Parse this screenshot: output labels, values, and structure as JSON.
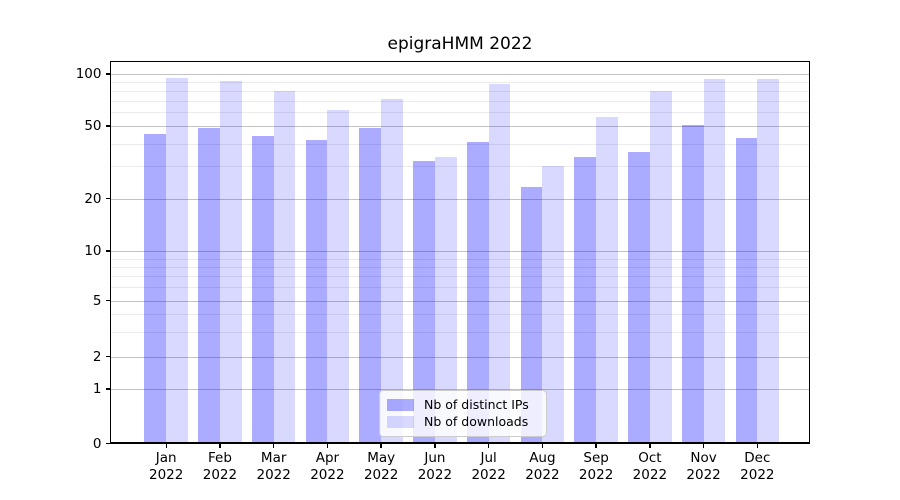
{
  "title": "epigraHMM 2022",
  "legend": {
    "items": [
      {
        "label": "Nb of distinct IPs",
        "color_hex": "#aaaaff",
        "fill": "rgba(0,0,255,0.33)"
      },
      {
        "label": "Nb of downloads",
        "color_hex": "#d9d9ff",
        "fill": "rgba(0,0,255,0.15)"
      }
    ]
  },
  "chart_data": {
    "type": "bar",
    "title": "epigraHMM 2022",
    "categories": [
      "Jan 2022",
      "Feb 2022",
      "Mar 2022",
      "Apr 2022",
      "May 2022",
      "Jun 2022",
      "Jul 2022",
      "Aug 2022",
      "Sep 2022",
      "Oct 2022",
      "Nov 2022",
      "Dec 2022"
    ],
    "series": [
      {
        "name": "Nb of distinct IPs",
        "color_hex": "#aaaaff",
        "fill": "rgba(0,0,255,0.33)",
        "values": [
          45,
          49,
          44,
          42,
          49,
          32,
          41,
          23,
          34,
          36,
          51,
          43
        ]
      },
      {
        "name": "Nb of downloads",
        "color_hex": "#d9d9ff",
        "fill": "rgba(0,0,255,0.15)",
        "values": [
          95,
          91,
          80,
          62,
          72,
          34,
          88,
          30,
          56,
          80,
          93,
          93
        ]
      }
    ],
    "xlabel": "",
    "ylabel": "",
    "yscale": "symlog",
    "yticks": [
      0,
      1,
      2,
      5,
      10,
      20,
      50,
      100
    ],
    "yticks_minor": [
      3,
      4,
      6,
      7,
      8,
      9,
      30,
      40,
      60,
      70,
      80,
      90
    ],
    "ylim": [
      0,
      116
    ],
    "grid": true,
    "legend_position": "lower center (inside axes)"
  }
}
